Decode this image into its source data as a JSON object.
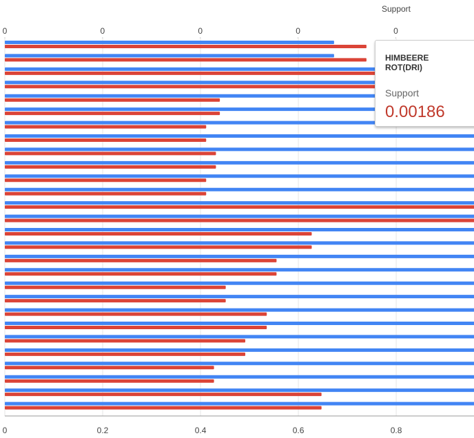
{
  "chart_data": {
    "type": "bar",
    "orientation": "horizontal",
    "x2_title": "Support",
    "series": [
      {
        "color": "#4285f4",
        "axis": "x",
        "values": [
          0.673,
          0.673,
          1,
          1,
          1,
          1,
          1,
          1,
          1,
          1,
          1,
          1,
          1,
          1,
          1,
          1,
          1,
          1,
          1,
          1,
          1,
          1,
          1,
          1,
          1,
          1,
          1,
          1
        ]
      },
      {
        "name": "Support",
        "color": "#db4437",
        "axis": "x2",
        "values": [
          0.00185,
          0.00185,
          0.0025,
          0.0025,
          0.0011,
          0.0011,
          0.00103,
          0.00103,
          0.00108,
          0.00108,
          0.00103,
          0.00103,
          0.0025,
          0.0025,
          0.00157,
          0.00157,
          0.00139,
          0.00139,
          0.00113,
          0.00113,
          0.00134,
          0.00134,
          0.00123,
          0.00123,
          0.00107,
          0.00107,
          0.00162,
          0.00162
        ]
      }
    ],
    "xlim": [
      0,
      0.959
    ],
    "xticks": [
      0,
      0.2,
      0.4,
      0.6,
      0.8
    ],
    "x2lim": [
      0,
      0.0024
    ],
    "x2ticks": [
      {
        "value": 0,
        "label": "0"
      },
      {
        "value": 0.0005,
        "label": "0"
      },
      {
        "value": 0.001,
        "label": "0"
      },
      {
        "value": 0.0015,
        "label": "0"
      },
      {
        "value": 0.002,
        "label": "0"
      }
    ],
    "grid": true,
    "tooltip": {
      "title": "HIMBEERE ROT(DRI)",
      "label": "Support",
      "value": 0.00186
    }
  }
}
